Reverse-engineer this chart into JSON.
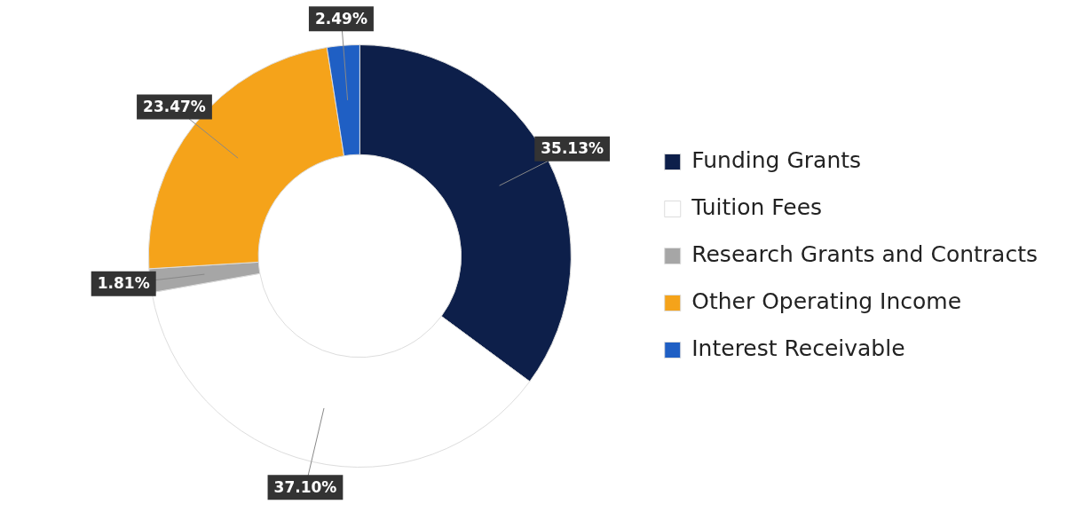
{
  "chart_data": {
    "type": "donut",
    "categories": [
      "Funding Grants",
      "Tuition Fees",
      "Research Grants and Contracts",
      "Other Operating Income",
      "Interest Receivable"
    ],
    "values": [
      35.13,
      37.1,
      1.81,
      23.47,
      2.49
    ],
    "colors": [
      "#0d1f4a",
      "#ffffff",
      "#a6a6a6",
      "#f5a31a",
      "#1f5fc4"
    ],
    "value_labels": [
      "35.13%",
      "37.10%",
      "1.81%",
      "23.47%",
      "2.49%"
    ],
    "legend": "right"
  }
}
